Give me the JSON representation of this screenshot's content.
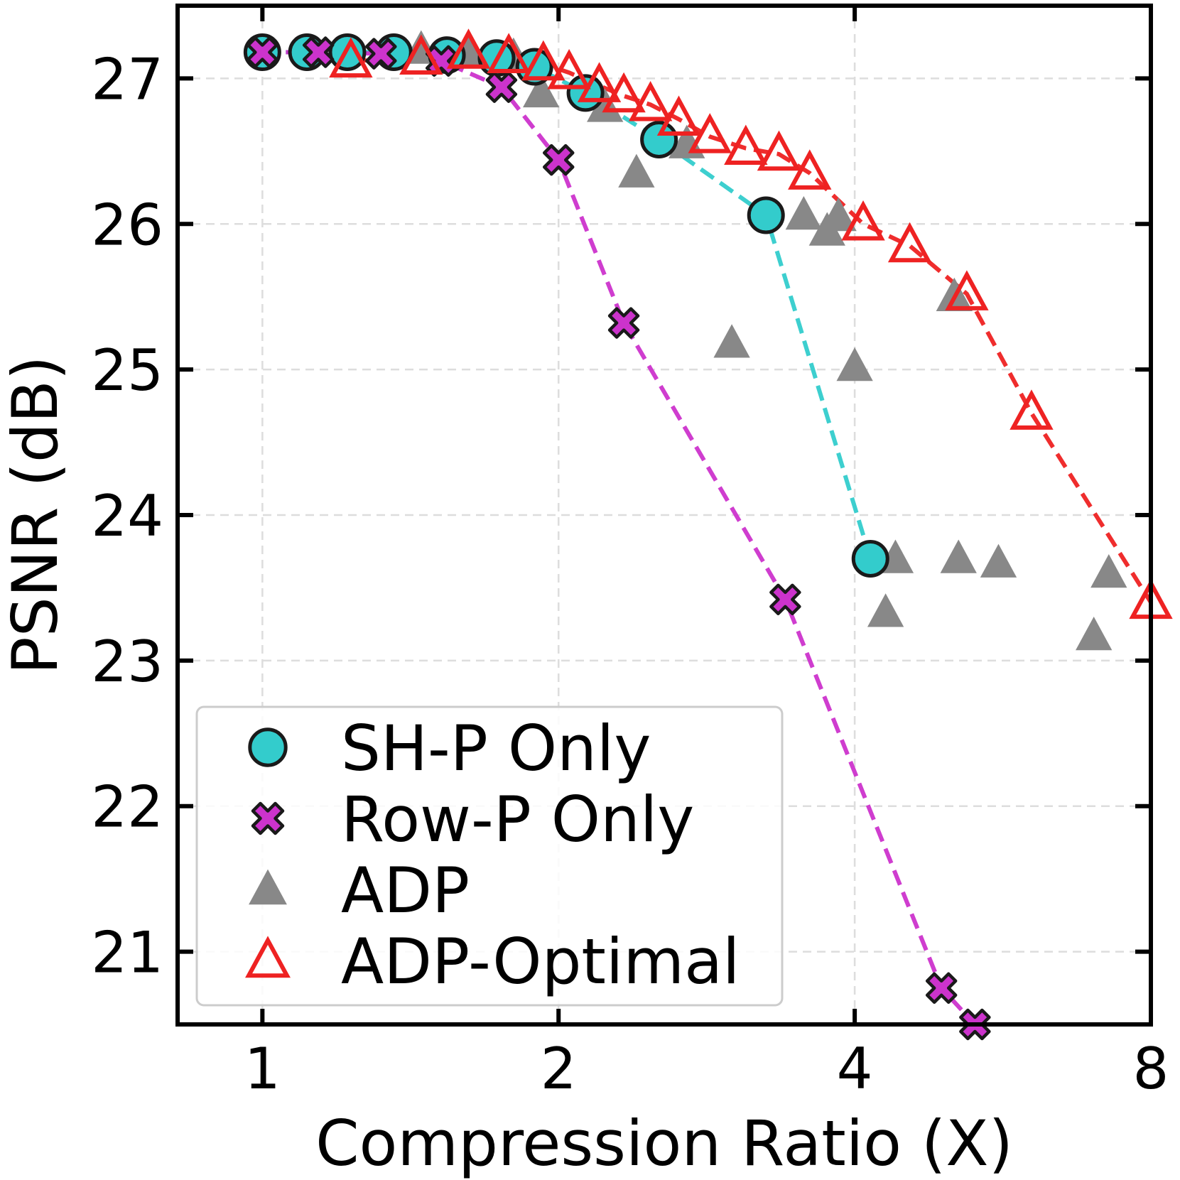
{
  "chart_data": {
    "type": "scatter",
    "title": "",
    "xlabel": "Compression Ratio (X)",
    "ylabel": "PSNR (dB)",
    "xscale": "log2",
    "xlim": [
      0.82,
      8.0
    ],
    "ylim": [
      20.5,
      27.5
    ],
    "xticks": [
      {
        "value": 1,
        "label": "1"
      },
      {
        "value": 2,
        "label": "2"
      },
      {
        "value": 4,
        "label": "4"
      },
      {
        "value": 8,
        "label": "8"
      }
    ],
    "yticks": [
      {
        "value": 21,
        "label": "21"
      },
      {
        "value": 22,
        "label": "22"
      },
      {
        "value": 23,
        "label": "23"
      },
      {
        "value": 24,
        "label": "24"
      },
      {
        "value": 25,
        "label": "25"
      },
      {
        "value": 26,
        "label": "26"
      },
      {
        "value": 27,
        "label": "27"
      }
    ],
    "grid": true,
    "legend_position": "lower-left",
    "series": [
      {
        "name": "SH-P Only",
        "marker": "circle",
        "color": "#33cccc",
        "line": "dashed",
        "x": [
          1.0,
          1.11,
          1.22,
          1.36,
          1.54,
          1.73,
          1.89,
          2.13,
          2.53,
          3.25,
          4.15
        ],
        "y": [
          27.18,
          27.18,
          27.18,
          27.18,
          27.16,
          27.14,
          27.08,
          26.9,
          26.58,
          26.06,
          23.7
        ]
      },
      {
        "name": "Row-P Only",
        "marker": "x",
        "color": "#cc33cc",
        "line": "dashed",
        "x": [
          1.0,
          1.14,
          1.32,
          1.52,
          1.75,
          2.0,
          2.33,
          3.4,
          4.9,
          5.3
        ],
        "y": [
          27.18,
          27.18,
          27.17,
          27.12,
          26.94,
          26.44,
          25.32,
          23.42,
          20.75,
          20.5
        ]
      },
      {
        "name": "ADP",
        "marker": "triangle",
        "color": "#888888",
        "line": "none",
        "x": [
          1.45,
          1.62,
          1.8,
          1.92,
          2.23,
          2.4,
          2.7,
          3.0,
          3.55,
          3.75,
          3.85,
          4.0,
          4.3,
          4.4,
          5.05,
          5.1,
          5.6,
          7.0,
          7.25
        ],
        "y": [
          27.2,
          27.18,
          27.15,
          26.9,
          26.8,
          26.35,
          26.55,
          25.18,
          26.06,
          25.95,
          26.05,
          25.02,
          23.33,
          23.7,
          25.5,
          23.7,
          23.67,
          23.17,
          23.6
        ]
      },
      {
        "name": "ADP-Optimal",
        "marker": "triangle-open",
        "color": "#ee2222",
        "line": "dashed",
        "x": [
          1.23,
          1.45,
          1.62,
          1.78,
          1.93,
          2.05,
          2.2,
          2.33,
          2.48,
          2.65,
          2.85,
          3.1,
          3.35,
          3.6,
          4.08,
          4.55,
          5.2,
          6.05,
          8.0
        ],
        "y": [
          27.12,
          27.14,
          27.18,
          27.15,
          27.1,
          27.04,
          26.95,
          26.88,
          26.82,
          26.72,
          26.6,
          26.52,
          26.48,
          26.35,
          26.0,
          25.85,
          25.52,
          24.7,
          23.4
        ]
      }
    ]
  }
}
